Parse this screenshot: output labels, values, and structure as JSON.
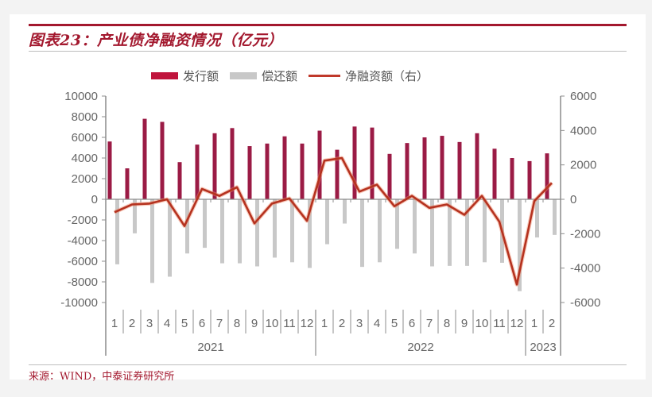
{
  "header": {
    "title": "图表23：产业债净融资情况（亿元）"
  },
  "footer": {
    "source": "来源：WIND，中泰证券研究所"
  },
  "colors": {
    "issuance": "#9b1b45",
    "repayment": "#c8c8c8",
    "net": "#c0392b",
    "accent": "#a3182e",
    "axis": "#8c8c8c"
  },
  "chart_data": {
    "type": "bar",
    "title": "图表23：产业债净融资情况（亿元）",
    "xlabel": "",
    "ylabel": "",
    "legend_position": "top",
    "grid": false,
    "categories": [
      "2021-1",
      "2021-2",
      "2021-3",
      "2021-4",
      "2021-5",
      "2021-6",
      "2021-7",
      "2021-8",
      "2021-9",
      "2021-10",
      "2021-11",
      "2021-12",
      "2022-1",
      "2022-2",
      "2022-3",
      "2022-4",
      "2022-5",
      "2022-6",
      "2022-7",
      "2022-8",
      "2022-9",
      "2022-10",
      "2022-11",
      "2022-12",
      "2023-1",
      "2023-2"
    ],
    "month_labels": [
      "1",
      "2",
      "3",
      "4",
      "5",
      "6",
      "7",
      "8",
      "9",
      "10",
      "11",
      "12",
      "1",
      "2",
      "3",
      "4",
      "5",
      "6",
      "7",
      "8",
      "9",
      "10",
      "11",
      "12",
      "1",
      "2"
    ],
    "year_groups": [
      {
        "label": "2021",
        "start": 0,
        "count": 12
      },
      {
        "label": "2022",
        "start": 12,
        "count": 12
      },
      {
        "label": "2023",
        "start": 24,
        "count": 2
      }
    ],
    "series": [
      {
        "name": "发行额",
        "type": "bar",
        "axis": "left",
        "values": [
          5600,
          3000,
          7800,
          7500,
          3600,
          5300,
          6400,
          6900,
          5150,
          5400,
          6100,
          5400,
          6650,
          4800,
          7050,
          6950,
          4400,
          5450,
          6000,
          6150,
          5550,
          6400,
          4900,
          4000,
          3700,
          4450
        ]
      },
      {
        "name": "偿还额",
        "type": "bar",
        "axis": "left",
        "values": [
          -6300,
          -3300,
          -8100,
          -7500,
          -5250,
          -4700,
          -6200,
          -6200,
          -6500,
          -5650,
          -6100,
          -6650,
          -4350,
          -2350,
          -6550,
          -6100,
          -4800,
          -5250,
          -6500,
          -6450,
          -6450,
          -6100,
          -6150,
          -8900,
          -3700,
          -3450
        ]
      },
      {
        "name": "净融资额（右）",
        "type": "line",
        "axis": "right",
        "values": [
          -750,
          -300,
          -250,
          0,
          -1550,
          600,
          200,
          700,
          -1400,
          -250,
          50,
          -1250,
          2250,
          2400,
          450,
          850,
          -400,
          200,
          -500,
          -300,
          -900,
          200,
          -1300,
          -4950,
          -100,
          950
        ]
      }
    ],
    "left_axis": {
      "min": -10000,
      "max": 10000,
      "step": 2000,
      "ticks": [
        "10000",
        "8000",
        "6000",
        "4000",
        "2000",
        "0",
        "-2000",
        "-4000",
        "-6000",
        "-8000",
        "-10000"
      ]
    },
    "right_axis": {
      "min": -6000,
      "max": 6000,
      "step": 2000,
      "ticks": [
        "6000",
        "4000",
        "2000",
        "0",
        "-2000",
        "-4000",
        "-6000"
      ]
    }
  },
  "legend": [
    {
      "label": "发行额",
      "kind": "bar",
      "color": "#c0143c"
    },
    {
      "label": "偿还额",
      "kind": "bar",
      "color": "#c8c8c8"
    },
    {
      "label": "净融资额（右）",
      "kind": "line",
      "color": "#c0392b"
    }
  ]
}
